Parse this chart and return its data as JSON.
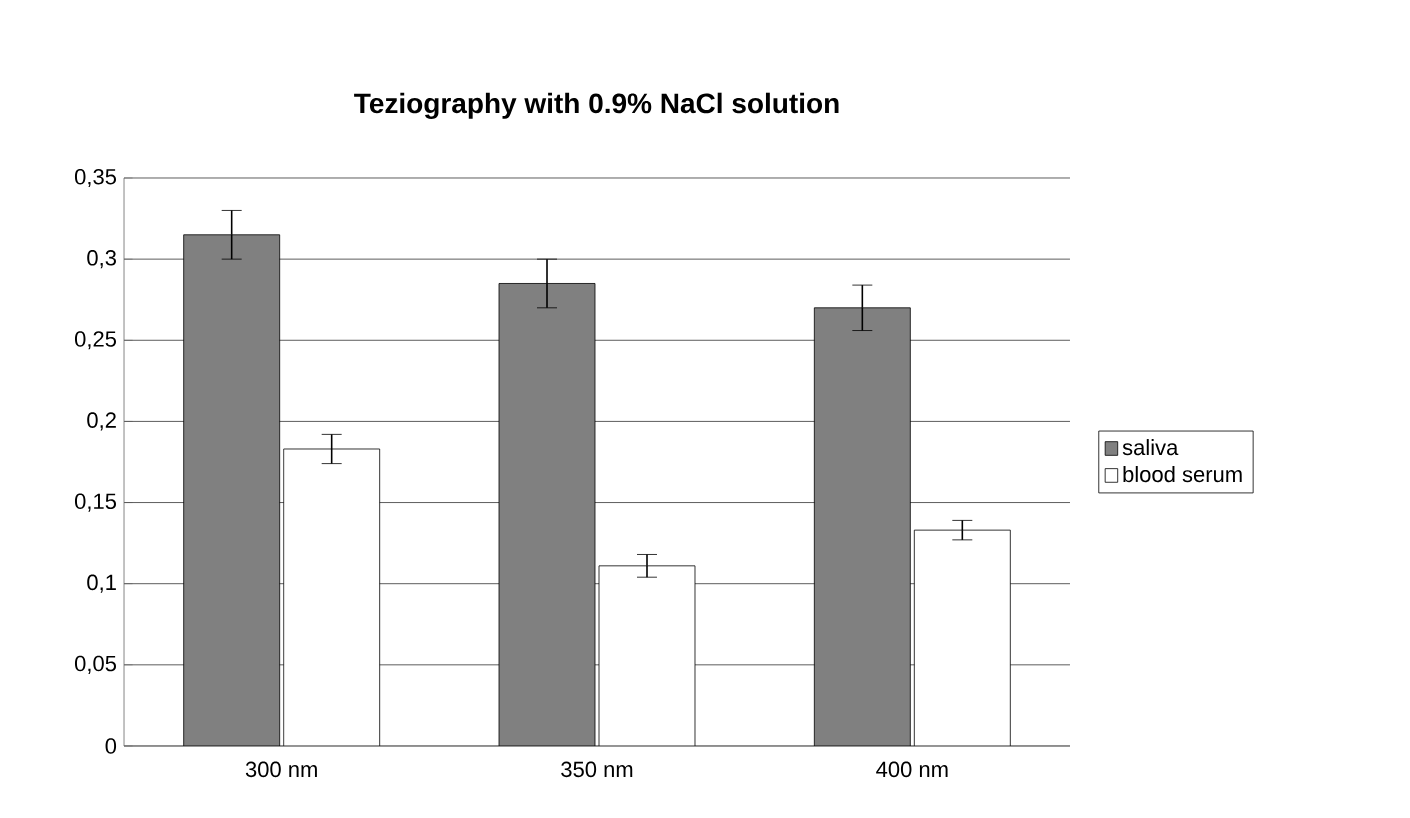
{
  "chart_data": {
    "type": "bar",
    "title": "Teziography with 0.9% NaCl solution",
    "categories": [
      "300 nm",
      "350 nm",
      "400 nm"
    ],
    "series": [
      {
        "name": "saliva",
        "color": "#808080",
        "values": [
          0.315,
          0.285,
          0.27
        ],
        "errors": [
          0.015,
          0.015,
          0.014
        ]
      },
      {
        "name": "blood serum",
        "color": "#ffffff",
        "values": [
          0.183,
          0.111,
          0.133
        ],
        "errors": [
          0.009,
          0.007,
          0.006
        ]
      }
    ],
    "ylim": [
      0,
      0.35
    ],
    "yticks": [
      {
        "value": 0,
        "label": "0"
      },
      {
        "value": 0.05,
        "label": "0,05"
      },
      {
        "value": 0.1,
        "label": "0,1"
      },
      {
        "value": 0.15,
        "label": "0,15"
      },
      {
        "value": 0.2,
        "label": "0,2"
      },
      {
        "value": 0.25,
        "label": "0,25"
      },
      {
        "value": 0.3,
        "label": "0,3"
      },
      {
        "value": 0.35,
        "label": "0,35"
      }
    ],
    "grid": "y",
    "legend": "right"
  }
}
